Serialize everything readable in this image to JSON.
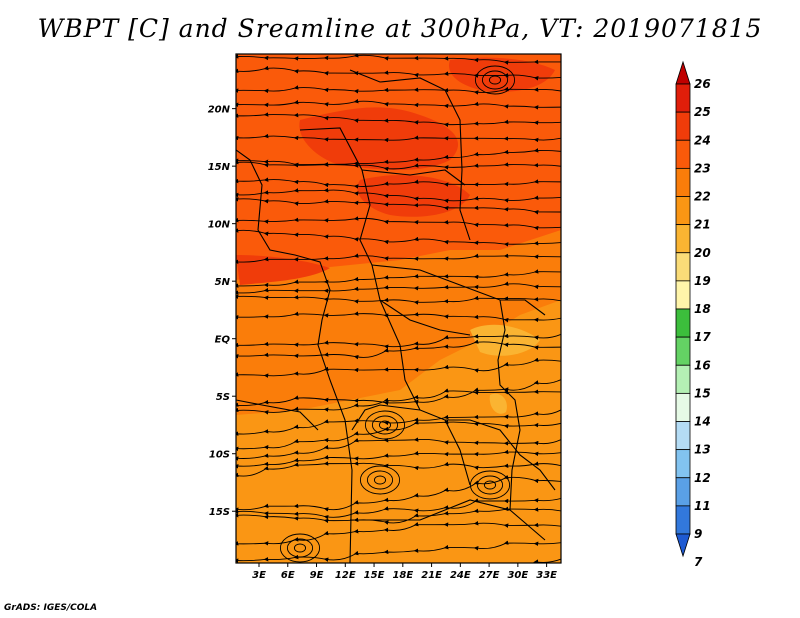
{
  "title": "WBPT [C] and Sreamline at 300hPa, VT: 2019071815",
  "map": {
    "lat_labels": [
      "20N",
      "15N",
      "10N",
      "5N",
      "EQ",
      "5S",
      "10S",
      "15S"
    ],
    "lat_values": [
      20,
      15,
      10,
      5,
      0,
      -5,
      -10,
      -15
    ],
    "lon_labels": [
      "3E",
      "6E",
      "9E",
      "12E",
      "15E",
      "18E",
      "21E",
      "24E",
      "27E",
      "30E",
      "33E"
    ],
    "lon_values": [
      3,
      6,
      9,
      12,
      15,
      18,
      21,
      24,
      27,
      30,
      33
    ]
  },
  "colorbar": {
    "labels": [
      "26",
      "25",
      "24",
      "23",
      "22",
      "21",
      "20",
      "19",
      "18",
      "17",
      "16",
      "15",
      "14",
      "13",
      "12",
      "11",
      "9",
      "7"
    ],
    "colors": [
      "#c00000",
      "#e01e0a",
      "#f03c0a",
      "#fa5a0a",
      "#fa7d0a",
      "#fa9614",
      "#fab432",
      "#fadc78",
      "#fff5aa",
      "#3cbe3c",
      "#64d264",
      "#b4f0b4",
      "#e6fae6",
      "#b4dcf5",
      "#82c3f0",
      "#5aa0e6",
      "#3278dc",
      "#1e5ad2"
    ]
  },
  "credit": "GrADS: IGES/COLA"
}
